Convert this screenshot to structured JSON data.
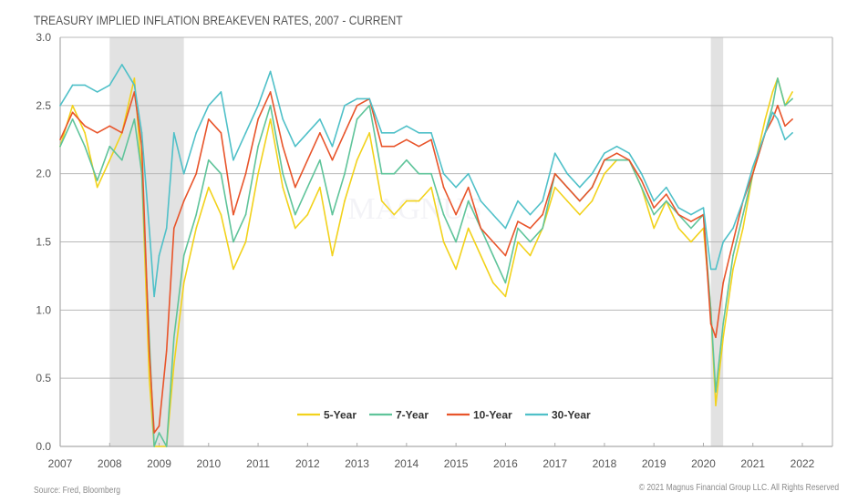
{
  "title": "TREASURY IMPLIED INFLATION BREAKEVEN RATES, 2007 - CURRENT",
  "source": "Source: Fred, Bloomberg",
  "copyright": "© 2021 Magnus Financial Group LLC. All Rights Reserved",
  "chart_data": {
    "type": "line",
    "title": "TREASURY IMPLIED INFLATION BREAKEVEN RATES, 2007 - CURRENT",
    "xlabel": "",
    "ylabel": "",
    "xlim": [
      2007,
      2022.9
    ],
    "ylim": [
      0.0,
      3.0
    ],
    "x_ticks": [
      "2007",
      "2008",
      "2009",
      "2010",
      "2011",
      "2012",
      "2013",
      "2014",
      "2015",
      "2016",
      "2017",
      "2018",
      "2019",
      "2020",
      "2021",
      "2022"
    ],
    "y_ticks": [
      "0.0",
      "0.5",
      "1.0",
      "1.5",
      "2.0",
      "2.5",
      "3.0"
    ],
    "grid": "horizontal",
    "legend_position": "bottom-center",
    "recessions": [
      {
        "start": 2008.0,
        "end": 2009.5
      },
      {
        "start": 2020.15,
        "end": 2020.4
      }
    ],
    "colors": {
      "5-Year": "#f2d21b",
      "7-Year": "#5fc49a",
      "10-Year": "#e8542a",
      "30-Year": "#4fc0c8",
      "grid": "#b8b8b8",
      "recession": "#e2e2e2"
    },
    "x": [
      2007.0,
      2007.25,
      2007.5,
      2007.75,
      2008.0,
      2008.25,
      2008.5,
      2008.65,
      2008.8,
      2008.9,
      2009.0,
      2009.15,
      2009.3,
      2009.5,
      2009.75,
      2010.0,
      2010.25,
      2010.5,
      2010.75,
      2011.0,
      2011.25,
      2011.5,
      2011.75,
      2012.0,
      2012.25,
      2012.5,
      2012.75,
      2013.0,
      2013.25,
      2013.5,
      2013.75,
      2014.0,
      2014.25,
      2014.5,
      2014.75,
      2015.0,
      2015.25,
      2015.5,
      2015.75,
      2016.0,
      2016.25,
      2016.5,
      2016.75,
      2017.0,
      2017.25,
      2017.5,
      2017.75,
      2018.0,
      2018.25,
      2018.5,
      2018.75,
      2019.0,
      2019.25,
      2019.5,
      2019.75,
      2020.0,
      2020.15,
      2020.25,
      2020.4,
      2020.6,
      2020.8,
      2021.0,
      2021.25,
      2021.4,
      2021.5,
      2021.65,
      2021.8
    ],
    "series": [
      {
        "name": "5-Year",
        "values": [
          2.2,
          2.5,
          2.3,
          1.9,
          2.1,
          2.3,
          2.7,
          2.0,
          0.5,
          0.0,
          0.0,
          0.0,
          0.6,
          1.2,
          1.6,
          1.9,
          1.7,
          1.3,
          1.5,
          2.0,
          2.4,
          1.9,
          1.6,
          1.7,
          1.9,
          1.4,
          1.8,
          2.1,
          2.3,
          1.8,
          1.7,
          1.8,
          1.8,
          1.9,
          1.5,
          1.3,
          1.6,
          1.4,
          1.2,
          1.1,
          1.5,
          1.4,
          1.6,
          1.9,
          1.8,
          1.7,
          1.8,
          2.0,
          2.1,
          2.1,
          1.9,
          1.6,
          1.8,
          1.6,
          1.5,
          1.6,
          1.0,
          0.3,
          0.8,
          1.3,
          1.6,
          2.0,
          2.4,
          2.6,
          2.7,
          2.5,
          2.6
        ]
      },
      {
        "name": "7-Year",
        "values": [
          2.2,
          2.4,
          2.2,
          1.95,
          2.2,
          2.1,
          2.4,
          2.0,
          0.8,
          0.0,
          0.1,
          0.0,
          0.8,
          1.4,
          1.7,
          2.1,
          2.0,
          1.5,
          1.7,
          2.2,
          2.5,
          2.0,
          1.7,
          1.9,
          2.1,
          1.7,
          2.0,
          2.4,
          2.5,
          2.0,
          2.0,
          2.1,
          2.0,
          2.0,
          1.7,
          1.5,
          1.8,
          1.6,
          1.4,
          1.2,
          1.6,
          1.5,
          1.6,
          2.0,
          1.9,
          1.8,
          1.9,
          2.1,
          2.1,
          2.1,
          1.9,
          1.7,
          1.8,
          1.7,
          1.6,
          1.7,
          1.0,
          0.4,
          0.9,
          1.4,
          1.7,
          2.0,
          2.3,
          2.5,
          2.7,
          2.5,
          2.55
        ]
      },
      {
        "name": "10-Year",
        "values": [
          2.25,
          2.45,
          2.35,
          2.3,
          2.35,
          2.3,
          2.6,
          2.2,
          0.7,
          0.1,
          0.15,
          0.7,
          1.6,
          1.8,
          2.0,
          2.4,
          2.3,
          1.7,
          2.0,
          2.4,
          2.6,
          2.2,
          1.9,
          2.1,
          2.3,
          2.1,
          2.3,
          2.5,
          2.55,
          2.2,
          2.2,
          2.25,
          2.2,
          2.25,
          1.9,
          1.7,
          1.9,
          1.6,
          1.5,
          1.4,
          1.65,
          1.6,
          1.7,
          2.0,
          1.9,
          1.8,
          1.9,
          2.1,
          2.15,
          2.1,
          1.95,
          1.75,
          1.85,
          1.7,
          1.65,
          1.7,
          0.9,
          0.8,
          1.2,
          1.5,
          1.8,
          2.0,
          2.3,
          2.4,
          2.5,
          2.35,
          2.4
        ]
      },
      {
        "name": "30-Year",
        "values": [
          2.5,
          2.65,
          2.65,
          2.6,
          2.65,
          2.8,
          2.65,
          2.3,
          1.6,
          1.1,
          1.4,
          1.6,
          2.3,
          2.0,
          2.3,
          2.5,
          2.6,
          2.1,
          2.3,
          2.5,
          2.75,
          2.4,
          2.2,
          2.3,
          2.4,
          2.2,
          2.5,
          2.55,
          2.55,
          2.3,
          2.3,
          2.35,
          2.3,
          2.3,
          2.0,
          1.9,
          2.0,
          1.8,
          1.7,
          1.6,
          1.8,
          1.7,
          1.8,
          2.15,
          2.0,
          1.9,
          2.0,
          2.15,
          2.2,
          2.15,
          2.0,
          1.8,
          1.9,
          1.75,
          1.7,
          1.75,
          1.3,
          1.3,
          1.5,
          1.6,
          1.8,
          2.05,
          2.3,
          2.45,
          2.4,
          2.25,
          2.3
        ]
      }
    ]
  },
  "watermark": "MAGNUS"
}
